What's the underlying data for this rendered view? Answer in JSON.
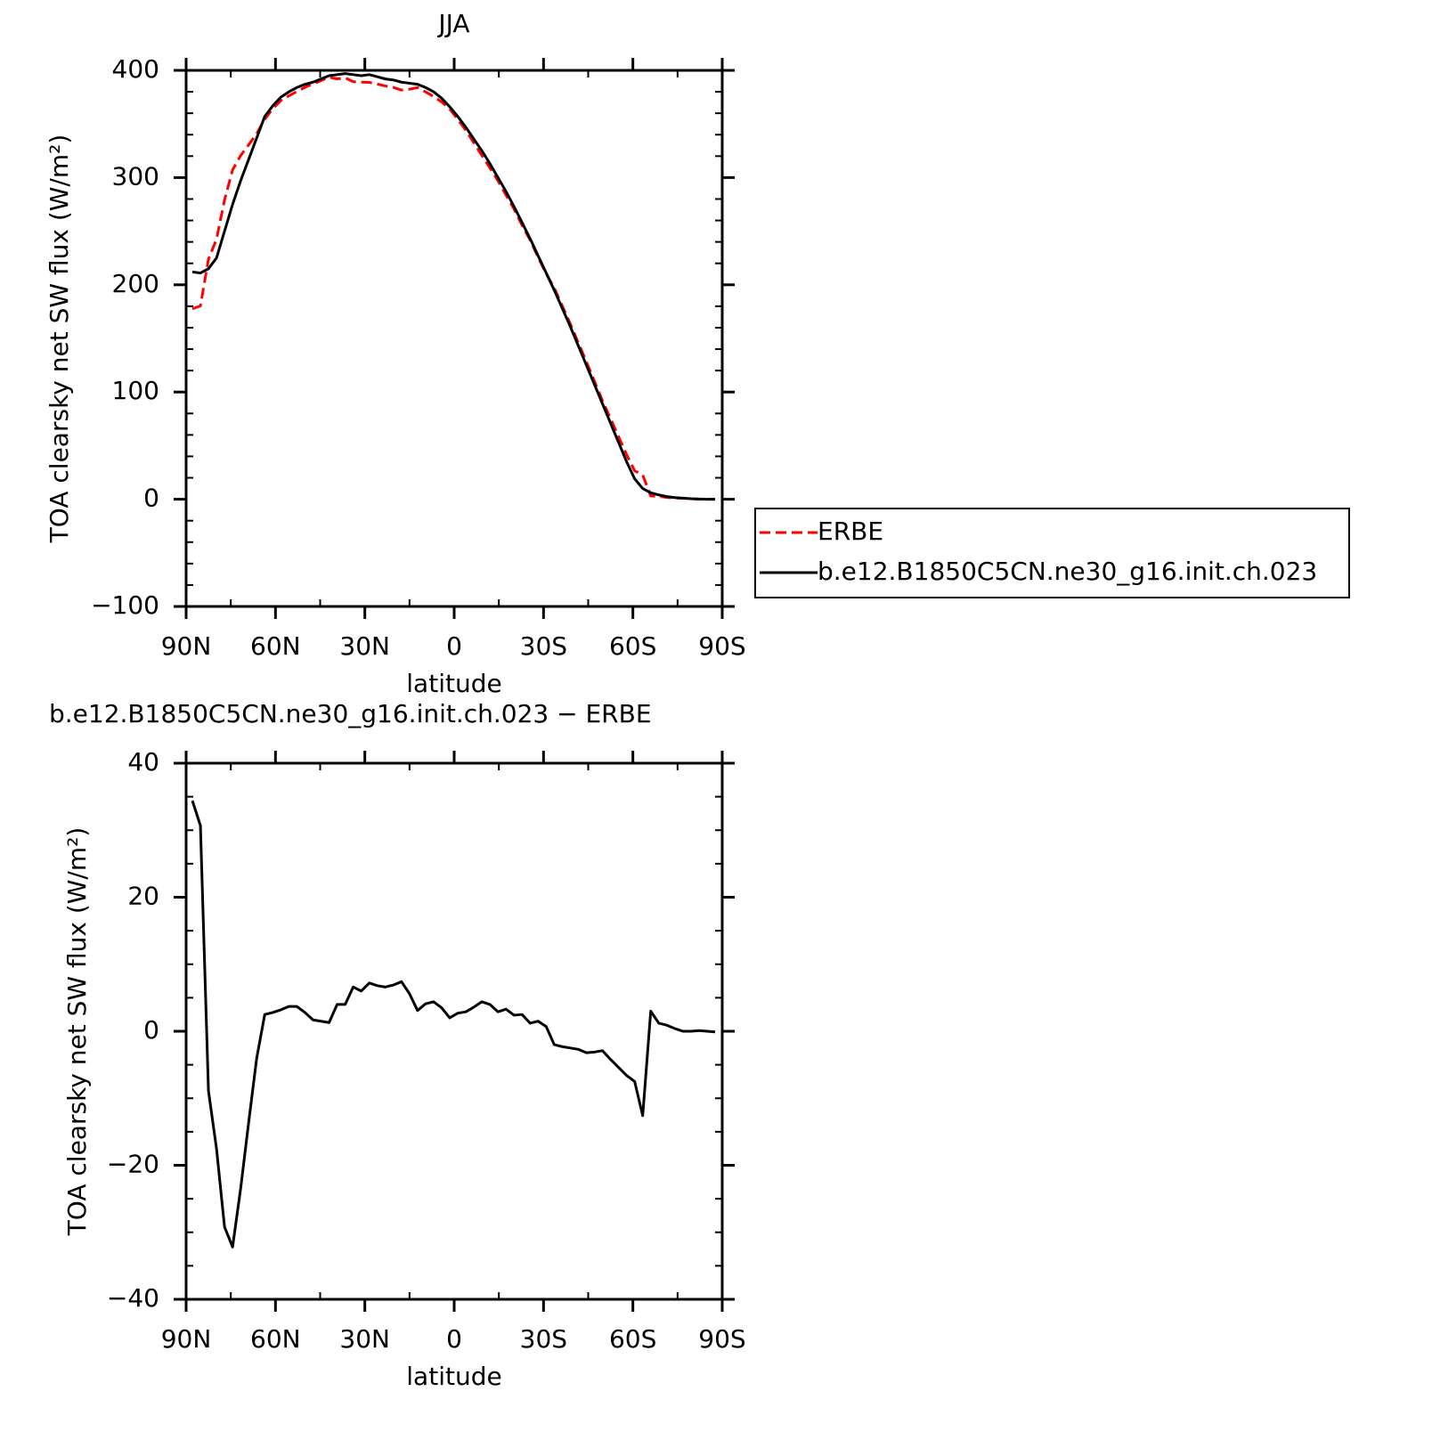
{
  "chart_data": [
    {
      "type": "line",
      "title": "JJA",
      "xlabel": "latitude",
      "ylabel": "TOA clearsky net SW flux (W/m²)",
      "x": [
        87.9,
        85.2,
        82.5,
        79.8,
        77.1,
        74.4,
        71.7,
        69,
        66.3,
        63.6,
        60.9,
        58.2,
        55.5,
        52.8,
        50.1,
        47.4,
        44.7,
        42,
        39.3,
        36.6,
        33.9,
        31.2,
        28.5,
        25.8,
        23.1,
        20.4,
        17.7,
        15,
        12.3,
        9.6,
        6.9,
        4.2,
        1.5,
        -1.2,
        -3.9,
        -6.6,
        -9.3,
        -12,
        -14.7,
        -17.4,
        -20.1,
        -22.8,
        -25.5,
        -28.2,
        -30.9,
        -33.6,
        -36.3,
        -39,
        -41.7,
        -44.4,
        -47.1,
        -49.8,
        -52.5,
        -55.2,
        -57.9,
        -60.6,
        -63.3,
        -66,
        -68.7,
        -71.4,
        -74.1,
        -76.8,
        -79.5,
        -82.2,
        -84.9,
        -87.6
      ],
      "xlim": [
        90,
        -90
      ],
      "xticks": [
        {
          "value": 90,
          "label": "90N"
        },
        {
          "value": 60,
          "label": "60N"
        },
        {
          "value": 30,
          "label": "30N"
        },
        0,
        {
          "value": -30,
          "label": "30S"
        },
        {
          "value": -60,
          "label": "60S"
        },
        {
          "value": -90,
          "label": "90S"
        }
      ],
      "ylim": [
        -100,
        400
      ],
      "yticks": [
        {
          "value": -100,
          "label": "−100"
        },
        0,
        100,
        200,
        300,
        400
      ],
      "legend": "right",
      "series": [
        {
          "name": "ERBE",
          "color": "#ff0000",
          "linestyle": "dashed",
          "values": [
            177.6,
            180.3,
            223.9,
            242.5,
            279.2,
            307.2,
            320.5,
            330.6,
            341,
            354.5,
            364.2,
            371.8,
            376.3,
            380.3,
            384.2,
            387.3,
            390.5,
            393.7,
            392,
            393,
            389.4,
            389,
            388.8,
            387.2,
            385.4,
            384.1,
            381.6,
            382.4,
            383.9,
            379.9,
            375.6,
            370.5,
            364,
            354.3,
            344.1,
            332.4,
            320.6,
            309,
            297.1,
            283.7,
            270.6,
            255.5,
            241.8,
            225.5,
            210.3,
            197,
            180.3,
            163.5,
            145.7,
            128.2,
            110.1,
            91.9,
            75.2,
            58.4,
            41.6,
            26.5,
            22.6,
            3,
            2.8,
            1.6,
            1.1,
            1,
            0.5,
            0.1,
            0,
            0.1
          ]
        },
        {
          "name": "b.e12.B1850C5CN.ne30_g16.init.ch.023",
          "color": "#000000",
          "linestyle": "solid",
          "values": [
            212,
            211,
            215,
            225,
            250,
            275,
            297,
            317,
            337,
            357,
            367,
            375,
            380,
            384,
            387,
            389,
            392,
            395,
            396,
            397,
            396,
            395,
            396,
            394,
            392,
            391,
            389,
            388,
            387,
            384,
            380,
            374,
            366,
            357,
            347,
            336,
            325,
            313,
            300,
            287,
            273,
            258,
            243,
            227,
            211,
            195,
            178,
            161,
            143,
            125,
            107,
            89,
            71,
            53,
            35,
            19,
            10,
            6,
            4,
            2.5,
            1.5,
            1,
            0.5,
            0.2,
            0,
            0
          ]
        }
      ]
    },
    {
      "type": "line",
      "title": "b.e12.B1850C5CN.ne30_g16.init.ch.023 − ERBE",
      "xlabel": "latitude",
      "ylabel": "TOA clearsky net SW flux (W/m²)",
      "x": [
        87.9,
        85.2,
        82.5,
        79.8,
        77.1,
        74.4,
        71.7,
        69,
        66.3,
        63.6,
        60.9,
        58.2,
        55.5,
        52.8,
        50.1,
        47.4,
        44.7,
        42,
        39.3,
        36.6,
        33.9,
        31.2,
        28.5,
        25.8,
        23.1,
        20.4,
        17.7,
        15,
        12.3,
        9.6,
        6.9,
        4.2,
        1.5,
        -1.2,
        -3.9,
        -6.6,
        -9.3,
        -12,
        -14.7,
        -17.4,
        -20.1,
        -22.8,
        -25.5,
        -28.2,
        -30.9,
        -33.6,
        -36.3,
        -39,
        -41.7,
        -44.4,
        -47.1,
        -49.8,
        -52.5,
        -55.2,
        -57.9,
        -60.6,
        -63.3,
        -66,
        -68.7,
        -71.4,
        -74.1,
        -76.8,
        -79.5,
        -82.2,
        -84.9,
        -87.6
      ],
      "xlim": [
        90,
        -90
      ],
      "xticks": [
        {
          "value": 90,
          "label": "90N"
        },
        {
          "value": 60,
          "label": "60N"
        },
        {
          "value": 30,
          "label": "30N"
        },
        0,
        {
          "value": -30,
          "label": "30S"
        },
        {
          "value": -60,
          "label": "60S"
        },
        {
          "value": -90,
          "label": "90S"
        }
      ],
      "ylim": [
        -40,
        40
      ],
      "yticks": [
        {
          "value": -40,
          "label": "−40"
        },
        {
          "value": -20,
          "label": "−20"
        },
        0,
        20,
        40
      ],
      "series": [
        {
          "color": "#000000",
          "linestyle": "solid",
          "values": [
            34.4,
            30.7,
            -8.9,
            -17.5,
            -29.2,
            -32.2,
            -23.5,
            -13.6,
            -4,
            2.5,
            2.8,
            3.2,
            3.7,
            3.7,
            2.8,
            1.7,
            1.5,
            1.3,
            4,
            4,
            6.6,
            6,
            7.2,
            6.8,
            6.6,
            6.9,
            7.4,
            5.6,
            3.1,
            4.1,
            4.4,
            3.5,
            2,
            2.7,
            2.9,
            3.6,
            4.4,
            4,
            2.9,
            3.3,
            2.4,
            2.5,
            1.2,
            1.5,
            0.7,
            -2,
            -2.3,
            -2.5,
            -2.7,
            -3.2,
            -3.1,
            -2.9,
            -4.2,
            -5.4,
            -6.6,
            -7.5,
            -12.6,
            3,
            1.2,
            0.9,
            0.4,
            0,
            0,
            0.1,
            0,
            -0.1
          ]
        }
      ]
    }
  ]
}
